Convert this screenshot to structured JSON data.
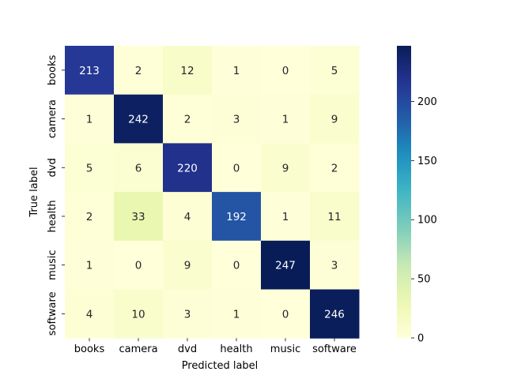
{
  "chart_data": {
    "type": "heatmap",
    "title": "",
    "xlabel": "Predicted label",
    "ylabel": "True label",
    "x_categories": [
      "books",
      "camera",
      "dvd",
      "health",
      "music",
      "software"
    ],
    "y_categories": [
      "books",
      "camera",
      "dvd",
      "health",
      "music",
      "software"
    ],
    "values": [
      [
        213,
        2,
        12,
        1,
        0,
        5
      ],
      [
        1,
        242,
        2,
        3,
        1,
        9
      ],
      [
        5,
        6,
        220,
        0,
        9,
        2
      ],
      [
        2,
        33,
        4,
        192,
        1,
        11
      ],
      [
        1,
        0,
        9,
        0,
        247,
        3
      ],
      [
        4,
        10,
        3,
        1,
        0,
        246
      ]
    ],
    "colormap": "YlGnBu",
    "value_range": [
      0,
      247
    ],
    "colorbar_ticks": [
      0,
      50,
      100,
      150,
      200
    ],
    "annotations": true,
    "grid": false,
    "colorbar": "right"
  }
}
